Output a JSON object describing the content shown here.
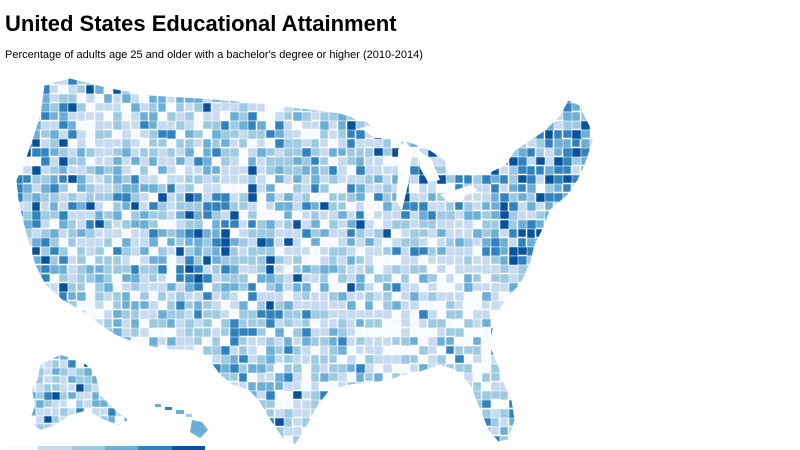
{
  "title": "United States Educational Attainment",
  "subtitle": "Percentage of adults age 25 and older with a bachelor's degree or higher (2010-2014)",
  "color_scale": [
    "#f7fbff",
    "#c6dbef",
    "#9ecae1",
    "#6baed6",
    "#3182bd",
    "#08519c"
  ],
  "map": {
    "type": "choropleth",
    "region": "United States counties",
    "insets": [
      "Alaska",
      "Hawaii"
    ]
  }
}
